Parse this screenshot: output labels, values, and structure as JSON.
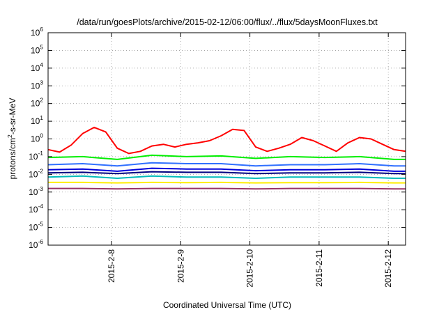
{
  "chart_data": {
    "type": "line",
    "title": "/data/run/goesPlots/archive/2015-02-12/06:00/flux/../flux/5daysMoonFluxes.txt",
    "xlabel": "Coordinated Universal Time (UTC)",
    "ylabel": {
      "base": "protons/cm",
      "sup": "2",
      "rest": "-s-sr-MeV"
    },
    "yscale": "log",
    "ylim": [
      1e-06,
      1000000.0
    ],
    "xlim": [
      "2015-02-07T02:00",
      "2015-02-12T06:00"
    ],
    "grid": true,
    "y_ticks": [
      {
        "value": 1e-06,
        "base": "10",
        "exp": "-6"
      },
      {
        "value": 1e-05,
        "base": "10",
        "exp": "-5"
      },
      {
        "value": 0.0001,
        "base": "10",
        "exp": "-4"
      },
      {
        "value": 0.001,
        "base": "10",
        "exp": "-3"
      },
      {
        "value": 0.01,
        "base": "10",
        "exp": "-2"
      },
      {
        "value": 0.1,
        "base": "10",
        "exp": "-1"
      },
      {
        "value": 1,
        "base": "10",
        "exp": "0"
      },
      {
        "value": 10.0,
        "base": "10",
        "exp": "1"
      },
      {
        "value": 100.0,
        "base": "10",
        "exp": "2"
      },
      {
        "value": 1000.0,
        "base": "10",
        "exp": "3"
      },
      {
        "value": 10000.0,
        "base": "10",
        "exp": "4"
      },
      {
        "value": 100000.0,
        "base": "10",
        "exp": "5"
      },
      {
        "value": 1000000.0,
        "base": "10",
        "exp": "6"
      }
    ],
    "x_ticks": [
      {
        "date": "2015-02-08T00:00",
        "label": "2015-2-8"
      },
      {
        "date": "2015-02-09T00:00",
        "label": "2015-2-9"
      },
      {
        "date": "2015-02-10T00:00",
        "label": "2015-2-10"
      },
      {
        "date": "2015-02-11T00:00",
        "label": "2015-2-11"
      },
      {
        "date": "2015-02-12T00:00",
        "label": "2015-2-12"
      }
    ],
    "series": [
      {
        "color": "#ff0000",
        "x": [
          "2015-02-07T02:00",
          "2015-02-07T06:00",
          "2015-02-07T10:00",
          "2015-02-07T14:00",
          "2015-02-07T18:00",
          "2015-02-07T22:00",
          "2015-02-08T02:00",
          "2015-02-08T06:00",
          "2015-02-08T10:00",
          "2015-02-08T14:00",
          "2015-02-08T18:00",
          "2015-02-08T22:00",
          "2015-02-09T02:00",
          "2015-02-09T06:00",
          "2015-02-09T10:00",
          "2015-02-09T14:00",
          "2015-02-09T18:00",
          "2015-02-09T22:00",
          "2015-02-10T02:00",
          "2015-02-10T06:00",
          "2015-02-10T10:00",
          "2015-02-10T14:00",
          "2015-02-10T18:00",
          "2015-02-10T22:00",
          "2015-02-11T02:00",
          "2015-02-11T06:00",
          "2015-02-11T10:00",
          "2015-02-11T14:00",
          "2015-02-11T18:00",
          "2015-02-11T22:00",
          "2015-02-12T02:00",
          "2015-02-12T06:00"
        ],
        "y": [
          0.25,
          0.18,
          0.45,
          2.0,
          4.5,
          2.5,
          0.3,
          0.15,
          0.2,
          0.4,
          0.5,
          0.35,
          0.5,
          0.6,
          0.8,
          1.5,
          3.5,
          3.0,
          0.35,
          0.2,
          0.3,
          0.5,
          1.2,
          0.8,
          0.4,
          0.2,
          0.6,
          1.2,
          1.0,
          0.5,
          0.25,
          0.2
        ]
      },
      {
        "color": "#00ee00",
        "x": [
          "2015-02-07T02:00",
          "2015-02-07T14:00",
          "2015-02-08T02:00",
          "2015-02-08T14:00",
          "2015-02-09T02:00",
          "2015-02-09T14:00",
          "2015-02-10T02:00",
          "2015-02-10T14:00",
          "2015-02-11T02:00",
          "2015-02-11T14:00",
          "2015-02-12T02:00",
          "2015-02-12T06:00"
        ],
        "y": [
          0.09,
          0.1,
          0.07,
          0.12,
          0.1,
          0.11,
          0.08,
          0.1,
          0.09,
          0.1,
          0.07,
          0.07
        ]
      },
      {
        "color": "#3070ff",
        "x": [
          "2015-02-07T02:00",
          "2015-02-07T14:00",
          "2015-02-08T02:00",
          "2015-02-08T14:00",
          "2015-02-09T02:00",
          "2015-02-09T14:00",
          "2015-02-10T02:00",
          "2015-02-10T14:00",
          "2015-02-11T02:00",
          "2015-02-11T14:00",
          "2015-02-12T02:00",
          "2015-02-12T06:00"
        ],
        "y": [
          0.035,
          0.04,
          0.03,
          0.045,
          0.04,
          0.04,
          0.03,
          0.035,
          0.035,
          0.04,
          0.03,
          0.03
        ]
      },
      {
        "color": "#0000dd",
        "x": [
          "2015-02-07T02:00",
          "2015-02-07T14:00",
          "2015-02-08T02:00",
          "2015-02-08T14:00",
          "2015-02-09T02:00",
          "2015-02-09T14:00",
          "2015-02-10T02:00",
          "2015-02-10T14:00",
          "2015-02-11T02:00",
          "2015-02-11T14:00",
          "2015-02-12T02:00",
          "2015-02-12T06:00"
        ],
        "y": [
          0.018,
          0.02,
          0.015,
          0.022,
          0.02,
          0.02,
          0.016,
          0.018,
          0.018,
          0.02,
          0.015,
          0.015
        ]
      },
      {
        "color": "#000080",
        "x": [
          "2015-02-07T02:00",
          "2015-02-07T14:00",
          "2015-02-08T02:00",
          "2015-02-08T14:00",
          "2015-02-09T02:00",
          "2015-02-09T14:00",
          "2015-02-10T02:00",
          "2015-02-10T14:00",
          "2015-02-11T02:00",
          "2015-02-11T14:00",
          "2015-02-12T02:00",
          "2015-02-12T06:00"
        ],
        "y": [
          0.012,
          0.013,
          0.011,
          0.014,
          0.013,
          0.013,
          0.011,
          0.012,
          0.012,
          0.013,
          0.011,
          0.011
        ]
      },
      {
        "color": "#00bbbb",
        "x": [
          "2015-02-07T02:00",
          "2015-02-07T14:00",
          "2015-02-08T02:00",
          "2015-02-08T14:00",
          "2015-02-09T02:00",
          "2015-02-09T14:00",
          "2015-02-10T02:00",
          "2015-02-10T14:00",
          "2015-02-11T02:00",
          "2015-02-11T14:00",
          "2015-02-12T02:00",
          "2015-02-12T06:00"
        ],
        "y": [
          0.007,
          0.008,
          0.006,
          0.008,
          0.007,
          0.007,
          0.006,
          0.007,
          0.007,
          0.007,
          0.006,
          0.006
        ]
      },
      {
        "color": "#ffee00",
        "x": [
          "2015-02-07T02:00",
          "2015-02-07T14:00",
          "2015-02-08T02:00",
          "2015-02-08T14:00",
          "2015-02-09T02:00",
          "2015-02-09T14:00",
          "2015-02-10T02:00",
          "2015-02-10T14:00",
          "2015-02-11T02:00",
          "2015-02-11T14:00",
          "2015-02-12T02:00",
          "2015-02-12T06:00"
        ],
        "y": [
          0.0035,
          0.0035,
          0.0033,
          0.0035,
          0.0034,
          0.0035,
          0.0033,
          0.0034,
          0.0034,
          0.0035,
          0.0033,
          0.0033
        ]
      },
      {
        "color": "#993366",
        "x": [
          "2015-02-07T02:00",
          "2015-02-07T14:00",
          "2015-02-08T02:00",
          "2015-02-08T14:00",
          "2015-02-09T02:00",
          "2015-02-09T14:00",
          "2015-02-10T02:00",
          "2015-02-10T14:00",
          "2015-02-11T02:00",
          "2015-02-11T14:00",
          "2015-02-12T02:00",
          "2015-02-12T06:00"
        ],
        "y": [
          0.0016,
          0.0016,
          0.0015,
          0.0016,
          0.0016,
          0.0016,
          0.0015,
          0.0016,
          0.0016,
          0.0016,
          0.0015,
          0.0015
        ]
      }
    ]
  }
}
